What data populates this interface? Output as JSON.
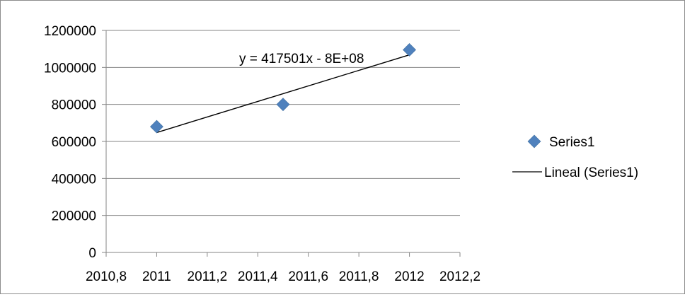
{
  "chart_data": {
    "type": "scatter",
    "title": "",
    "xlabel": "",
    "ylabel": "",
    "xlim": [
      2010.8,
      2012.2
    ],
    "ylim": [
      0,
      1200000
    ],
    "grid": {
      "horizontal": true,
      "vertical": false
    },
    "x_ticks": [
      2010.8,
      2011,
      2011.2,
      2011.4,
      2011.6,
      2011.8,
      2012,
      2012.2
    ],
    "x_tick_labels": [
      "2010,8",
      "2011",
      "2011,2",
      "2011,4",
      "2011,6",
      "2011,8",
      "2012",
      "2012,2"
    ],
    "y_ticks": [
      0,
      200000,
      400000,
      600000,
      800000,
      1000000,
      1200000
    ],
    "y_tick_labels": [
      "0",
      "200000",
      "400000",
      "600000",
      "800000",
      "1000000",
      "1200000"
    ],
    "series": [
      {
        "name": "Series1",
        "marker": "diamond",
        "color": "#4f81bd",
        "points": [
          {
            "x": 2011,
            "y": 680000
          },
          {
            "x": 2011.5,
            "y": 800000
          },
          {
            "x": 2012,
            "y": 1095000
          }
        ]
      }
    ],
    "trendline": {
      "name": "Lineal (Series1)",
      "equation": "y = 417501x - 8E+08",
      "color": "#000000",
      "from": {
        "x": 2011,
        "y": 648000
      },
      "to": {
        "x": 2012,
        "y": 1068000
      }
    },
    "legend": {
      "placement": "right",
      "entries": [
        "Series1",
        "Lineal (Series1)"
      ]
    }
  }
}
